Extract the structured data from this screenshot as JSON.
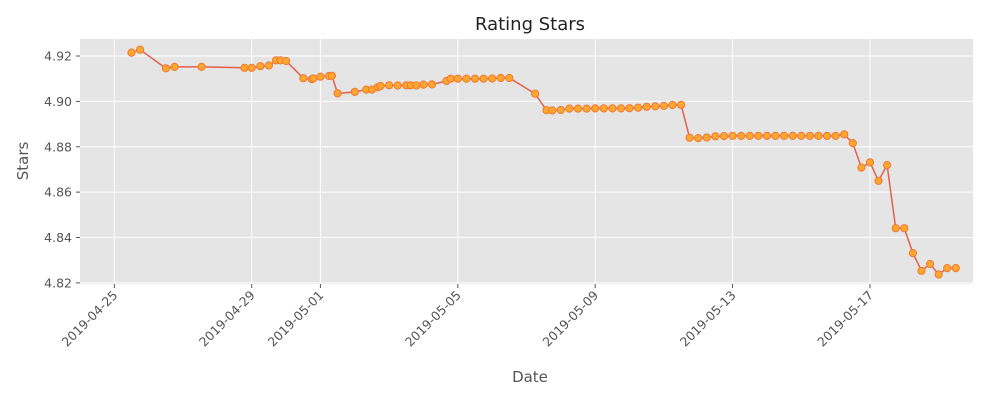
{
  "chart_data": {
    "type": "line",
    "title": "Rating Stars",
    "xlabel": "Date",
    "ylabel": "Stars",
    "x_ticks": [
      "2019-04-25",
      "2019-04-29",
      "2019-05-01",
      "2019-05-05",
      "2019-05-09",
      "2019-05-13",
      "2019-05-17"
    ],
    "y_ticks": [
      "4.82",
      "4.84",
      "4.86",
      "4.88",
      "4.90",
      "4.92"
    ],
    "xlim": [
      "2019-04-24",
      "2019-05-20"
    ],
    "ylim": [
      4.8195,
      4.9275
    ],
    "grid": true,
    "line_color": "#E24A33",
    "marker_color": "#FFA62E",
    "marker_edge_color": "#F07830",
    "plot_background": "#E5E5E5",
    "series": [
      {
        "points": [
          [
            "2019-04-25 12:00",
            4.9215
          ],
          [
            "2019-04-25 18:00",
            4.9228
          ],
          [
            "2019-04-26 12:00",
            4.9146
          ],
          [
            "2019-04-26 18:00",
            4.9152
          ],
          [
            "2019-04-27 13:00",
            4.9152
          ],
          [
            "2019-04-28 19:00",
            4.9148
          ],
          [
            "2019-04-29 00:00",
            4.9148
          ],
          [
            "2019-04-29 06:00",
            4.9155
          ],
          [
            "2019-04-29 12:00",
            4.9158
          ],
          [
            "2019-04-29 17:00",
            4.9181
          ],
          [
            "2019-04-29 20:00",
            4.9181
          ],
          [
            "2019-04-30 00:00",
            4.9178
          ],
          [
            "2019-04-30 12:00",
            4.9102
          ],
          [
            "2019-04-30 18:00",
            4.9098
          ],
          [
            "2019-04-30 19:00",
            4.9101
          ],
          [
            "2019-05-01 00:00",
            4.9109
          ],
          [
            "2019-05-01 06:00",
            4.9112
          ],
          [
            "2019-05-01 08:00",
            4.9113
          ],
          [
            "2019-05-01 12:00",
            4.9035
          ],
          [
            "2019-05-02 00:00",
            4.9042
          ],
          [
            "2019-05-02 08:00",
            4.9052
          ],
          [
            "2019-05-02 12:00",
            4.9052
          ],
          [
            "2019-05-02 16:00",
            4.9062
          ],
          [
            "2019-05-02 18:00",
            4.9068
          ],
          [
            "2019-05-03 00:00",
            4.9071
          ],
          [
            "2019-05-03 06:00",
            4.907
          ],
          [
            "2019-05-03 12:00",
            4.9071
          ],
          [
            "2019-05-03 15:00",
            4.9071
          ],
          [
            "2019-05-03 19:00",
            4.907
          ],
          [
            "2019-05-04 00:00",
            4.9074
          ],
          [
            "2019-05-04 06:00",
            4.9075
          ],
          [
            "2019-05-04 16:00",
            4.909
          ],
          [
            "2019-05-04 19:00",
            4.91
          ],
          [
            "2019-05-05 00:00",
            4.91
          ],
          [
            "2019-05-05 06:00",
            4.91
          ],
          [
            "2019-05-05 12:00",
            4.91
          ],
          [
            "2019-05-05 18:00",
            4.91
          ],
          [
            "2019-05-06 00:00",
            4.9101
          ],
          [
            "2019-05-06 06:00",
            4.9103
          ],
          [
            "2019-05-06 12:00",
            4.9103
          ],
          [
            "2019-05-07 06:00",
            4.9034
          ],
          [
            "2019-05-07 14:00",
            4.8961
          ],
          [
            "2019-05-07 18:00",
            4.896
          ],
          [
            "2019-05-08 00:00",
            4.8962
          ],
          [
            "2019-05-08 06:00",
            4.8968
          ],
          [
            "2019-05-08 12:00",
            4.8968
          ],
          [
            "2019-05-08 18:00",
            4.8968
          ],
          [
            "2019-05-09 00:00",
            4.8969
          ],
          [
            "2019-05-09 06:00",
            4.8969
          ],
          [
            "2019-05-09 12:00",
            4.8969
          ],
          [
            "2019-05-09 18:00",
            4.8969
          ],
          [
            "2019-05-10 00:00",
            4.897
          ],
          [
            "2019-05-10 06:00",
            4.8972
          ],
          [
            "2019-05-10 12:00",
            4.8976
          ],
          [
            "2019-05-10 18:00",
            4.8978
          ],
          [
            "2019-05-11 00:00",
            4.898
          ],
          [
            "2019-05-11 06:00",
            4.8984
          ],
          [
            "2019-05-11 12:00",
            4.8985
          ],
          [
            "2019-05-11 18:00",
            4.884
          ],
          [
            "2019-05-12 00:00",
            4.8838
          ],
          [
            "2019-05-12 06:00",
            4.8841
          ],
          [
            "2019-05-12 12:00",
            4.8846
          ],
          [
            "2019-05-12 18:00",
            4.8847
          ],
          [
            "2019-05-13 00:00",
            4.8848
          ],
          [
            "2019-05-13 06:00",
            4.8848
          ],
          [
            "2019-05-13 12:00",
            4.8848
          ],
          [
            "2019-05-13 18:00",
            4.8848
          ],
          [
            "2019-05-14 00:00",
            4.8848
          ],
          [
            "2019-05-14 06:00",
            4.8848
          ],
          [
            "2019-05-14 12:00",
            4.8848
          ],
          [
            "2019-05-14 18:00",
            4.8848
          ],
          [
            "2019-05-15 00:00",
            4.8848
          ],
          [
            "2019-05-15 06:00",
            4.8848
          ],
          [
            "2019-05-15 12:00",
            4.8848
          ],
          [
            "2019-05-15 18:00",
            4.8848
          ],
          [
            "2019-05-16 00:00",
            4.8848
          ],
          [
            "2019-05-16 06:00",
            4.8855
          ],
          [
            "2019-05-16 12:00",
            4.8816
          ],
          [
            "2019-05-16 18:00",
            4.8708
          ],
          [
            "2019-05-17 00:00",
            4.8731
          ],
          [
            "2019-05-17 06:00",
            4.865
          ],
          [
            "2019-05-17 12:00",
            4.8719
          ],
          [
            "2019-05-17 18:00",
            4.8441
          ],
          [
            "2019-05-18 00:00",
            4.8441
          ],
          [
            "2019-05-18 06:00",
            4.8331
          ],
          [
            "2019-05-18 12:00",
            4.8253
          ],
          [
            "2019-05-18 18:00",
            4.8283
          ],
          [
            "2019-05-19 00:00",
            4.8237
          ],
          [
            "2019-05-19 06:00",
            4.8265
          ],
          [
            "2019-05-19 12:00",
            4.8265
          ]
        ]
      }
    ]
  }
}
